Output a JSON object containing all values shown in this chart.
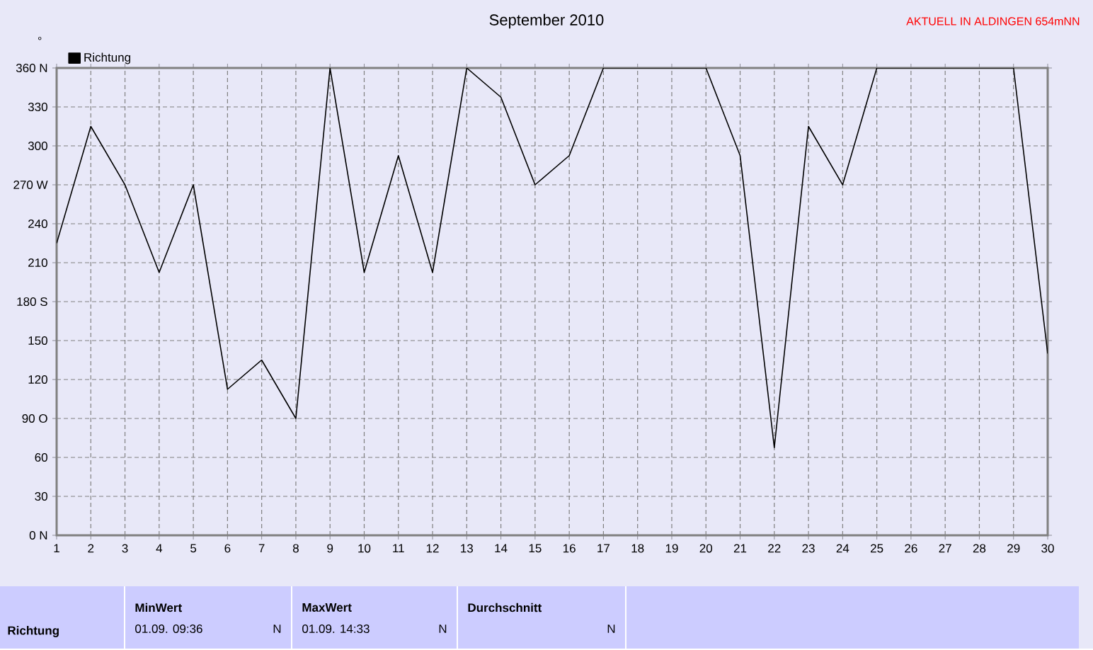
{
  "chart_data": {
    "type": "line",
    "title": "September 2010",
    "subtitle": "AKTUELL IN ALDINGEN 654mNN",
    "ylabel": "°",
    "categories": [
      "1",
      "2",
      "3",
      "4",
      "5",
      "6",
      "7",
      "8",
      "9",
      "10",
      "11",
      "12",
      "13",
      "14",
      "15",
      "16",
      "17",
      "18",
      "19",
      "20",
      "21",
      "22",
      "23",
      "24",
      "25",
      "26",
      "27",
      "28",
      "29",
      "30"
    ],
    "series": [
      {
        "name": "Richtung",
        "color": "#000000",
        "values": [
          225,
          315,
          270,
          202.5,
          270,
          112.5,
          135,
          90,
          360,
          202.5,
          292.5,
          202.5,
          360,
          337.5,
          270,
          292.5,
          360,
          360,
          360,
          360,
          292.5,
          67.5,
          315,
          270,
          360,
          360,
          360,
          360,
          360,
          140
        ]
      }
    ],
    "ylim": [
      0,
      360
    ],
    "yticks": [
      {
        "value": 0,
        "label": "0   N"
      },
      30,
      60,
      {
        "value": 90,
        "label": "90  O"
      },
      120,
      150,
      {
        "value": 180,
        "label": "180 S"
      },
      210,
      240,
      {
        "value": 270,
        "label": "270 W"
      },
      300,
      330,
      {
        "value": 360,
        "label": "360 N"
      }
    ],
    "grid": true,
    "legend": "top left",
    "marker": "none",
    "line_style": "solid",
    "annotations": [
      "Richtung",
      "MinWert",
      "01.09.  09:36",
      "N",
      "MaxWert",
      "01.09.  14:33",
      "N",
      "Durchschnitt",
      "N"
    ]
  }
}
